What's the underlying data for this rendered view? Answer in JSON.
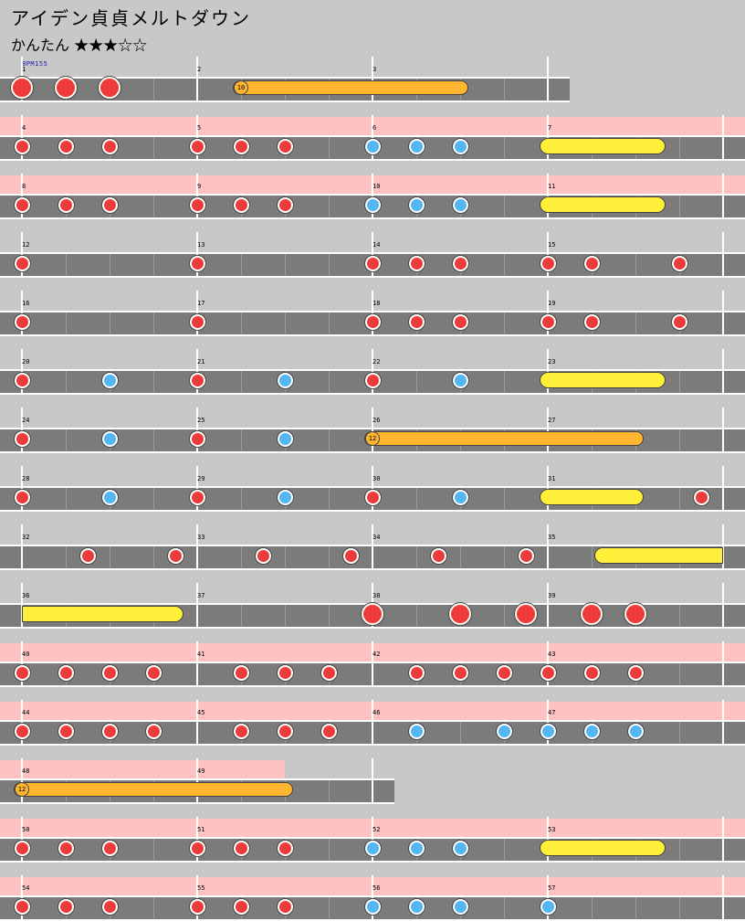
{
  "song": {
    "title": "アイデン貞貞メルトダウン",
    "difficulty_label": "かんたん",
    "stars": "★★★☆☆",
    "bpm_label": "BPM155"
  },
  "colors": {
    "background": "#c8c8c8",
    "lane": "#7b7b7b",
    "gogo_band": "#ffc2c2",
    "don": "#ee3c3c",
    "ka": "#52b6f2",
    "drumroll": "#ffee3a",
    "balloon": "#ffb530"
  },
  "rows": [
    {
      "measures": [
        1,
        2,
        3
      ],
      "gogo": false,
      "big": true,
      "notes": [
        {
          "m": 1,
          "b": 0,
          "t": "D"
        },
        {
          "m": 1,
          "b": 1,
          "t": "D"
        },
        {
          "m": 1,
          "b": 2,
          "t": "D"
        }
      ],
      "rolls": [
        {
          "type": "balloon",
          "start": [
            2,
            1
          ],
          "end": [
            3,
            2
          ],
          "count": "10"
        }
      ]
    },
    {
      "measures": [
        4,
        5,
        6,
        7
      ],
      "gogo": true,
      "notes": [
        {
          "m": 4,
          "b": 0,
          "t": "d"
        },
        {
          "m": 4,
          "b": 1,
          "t": "d"
        },
        {
          "m": 4,
          "b": 2,
          "t": "d"
        },
        {
          "m": 5,
          "b": 0,
          "t": "d"
        },
        {
          "m": 5,
          "b": 1,
          "t": "d"
        },
        {
          "m": 5,
          "b": 2,
          "t": "d"
        },
        {
          "m": 6,
          "b": 0,
          "t": "k"
        },
        {
          "m": 6,
          "b": 1,
          "t": "k"
        },
        {
          "m": 6,
          "b": 2,
          "t": "k"
        }
      ],
      "rolls": [
        {
          "type": "drumroll",
          "start": [
            7,
            0
          ],
          "end": [
            7,
            2.5
          ]
        }
      ]
    },
    {
      "measures": [
        8,
        9,
        10,
        11
      ],
      "gogo": true,
      "notes": [
        {
          "m": 8,
          "b": 0,
          "t": "d"
        },
        {
          "m": 8,
          "b": 1,
          "t": "d"
        },
        {
          "m": 8,
          "b": 2,
          "t": "d"
        },
        {
          "m": 9,
          "b": 0,
          "t": "d"
        },
        {
          "m": 9,
          "b": 1,
          "t": "d"
        },
        {
          "m": 9,
          "b": 2,
          "t": "d"
        },
        {
          "m": 10,
          "b": 0,
          "t": "k"
        },
        {
          "m": 10,
          "b": 1,
          "t": "k"
        },
        {
          "m": 10,
          "b": 2,
          "t": "k"
        }
      ],
      "rolls": [
        {
          "type": "drumroll",
          "start": [
            11,
            0
          ],
          "end": [
            11,
            2.5
          ]
        }
      ]
    },
    {
      "measures": [
        12,
        13,
        14,
        15
      ],
      "gogo": false,
      "notes": [
        {
          "m": 12,
          "b": 0,
          "t": "d"
        },
        {
          "m": 13,
          "b": 0,
          "t": "d"
        },
        {
          "m": 14,
          "b": 0,
          "t": "d"
        },
        {
          "m": 14,
          "b": 1,
          "t": "d"
        },
        {
          "m": 14,
          "b": 2,
          "t": "d"
        },
        {
          "m": 15,
          "b": 0,
          "t": "d"
        },
        {
          "m": 15,
          "b": 1,
          "t": "d"
        },
        {
          "m": 15,
          "b": 3,
          "t": "d"
        }
      ],
      "rolls": []
    },
    {
      "measures": [
        16,
        17,
        18,
        19
      ],
      "gogo": false,
      "notes": [
        {
          "m": 16,
          "b": 0,
          "t": "d"
        },
        {
          "m": 17,
          "b": 0,
          "t": "d"
        },
        {
          "m": 18,
          "b": 0,
          "t": "d"
        },
        {
          "m": 18,
          "b": 1,
          "t": "d"
        },
        {
          "m": 18,
          "b": 2,
          "t": "d"
        },
        {
          "m": 19,
          "b": 0,
          "t": "d"
        },
        {
          "m": 19,
          "b": 1,
          "t": "d"
        },
        {
          "m": 19,
          "b": 3,
          "t": "d"
        }
      ],
      "rolls": []
    },
    {
      "measures": [
        20,
        21,
        22,
        23
      ],
      "gogo": false,
      "notes": [
        {
          "m": 20,
          "b": 0,
          "t": "d"
        },
        {
          "m": 20,
          "b": 2,
          "t": "k"
        },
        {
          "m": 21,
          "b": 0,
          "t": "d"
        },
        {
          "m": 21,
          "b": 2,
          "t": "k"
        },
        {
          "m": 22,
          "b": 0,
          "t": "d"
        },
        {
          "m": 22,
          "b": 2,
          "t": "k"
        }
      ],
      "rolls": [
        {
          "type": "drumroll",
          "start": [
            23,
            0
          ],
          "end": [
            23,
            2.5
          ]
        }
      ]
    },
    {
      "measures": [
        24,
        25,
        26,
        27
      ],
      "gogo": false,
      "notes": [
        {
          "m": 24,
          "b": 0,
          "t": "d"
        },
        {
          "m": 24,
          "b": 2,
          "t": "k"
        },
        {
          "m": 25,
          "b": 0,
          "t": "d"
        },
        {
          "m": 25,
          "b": 2,
          "t": "k"
        }
      ],
      "rolls": [
        {
          "type": "balloon",
          "start": [
            26,
            0
          ],
          "end": [
            27,
            2
          ],
          "count": "12"
        }
      ]
    },
    {
      "measures": [
        28,
        29,
        30,
        31
      ],
      "gogo": false,
      "notes": [
        {
          "m": 28,
          "b": 0,
          "t": "d"
        },
        {
          "m": 28,
          "b": 2,
          "t": "k"
        },
        {
          "m": 29,
          "b": 0,
          "t": "d"
        },
        {
          "m": 29,
          "b": 2,
          "t": "k"
        },
        {
          "m": 30,
          "b": 0,
          "t": "d"
        },
        {
          "m": 30,
          "b": 2,
          "t": "k"
        },
        {
          "m": 31,
          "b": 3.5,
          "t": "d"
        }
      ],
      "rolls": [
        {
          "type": "drumroll",
          "start": [
            31,
            0
          ],
          "end": [
            31,
            2
          ]
        }
      ]
    },
    {
      "measures": [
        32,
        33,
        34,
        35
      ],
      "gogo": false,
      "notes": [
        {
          "m": 32,
          "b": 1.5,
          "t": "d"
        },
        {
          "m": 32,
          "b": 3.5,
          "t": "d"
        },
        {
          "m": 33,
          "b": 1.5,
          "t": "d"
        },
        {
          "m": 33,
          "b": 3.5,
          "t": "d"
        },
        {
          "m": 34,
          "b": 1.5,
          "t": "d"
        },
        {
          "m": 34,
          "b": 3.5,
          "t": "d"
        }
      ],
      "rolls": [
        {
          "type": "drumroll",
          "start": [
            35,
            1.25
          ],
          "end": [
            35,
            4
          ],
          "open_end": true
        }
      ]
    },
    {
      "measures": [
        36,
        37,
        38,
        39
      ],
      "gogo": false,
      "big": true,
      "notes": [
        {
          "m": 38,
          "b": 0,
          "t": "D"
        },
        {
          "m": 38,
          "b": 2,
          "t": "D"
        },
        {
          "m": 38,
          "b": 3.5,
          "t": "D"
        },
        {
          "m": 39,
          "b": 1,
          "t": "D"
        },
        {
          "m": 39,
          "b": 2,
          "t": "D"
        }
      ],
      "rolls": [
        {
          "type": "drumroll",
          "start": [
            36,
            0
          ],
          "end": [
            36,
            3.5
          ],
          "open_start": true
        }
      ]
    },
    {
      "measures": [
        40,
        41,
        42,
        43
      ],
      "gogo": true,
      "notes": [
        {
          "m": 40,
          "b": 0,
          "t": "d"
        },
        {
          "m": 40,
          "b": 1,
          "t": "d"
        },
        {
          "m": 40,
          "b": 2,
          "t": "d"
        },
        {
          "m": 40,
          "b": 3,
          "t": "d"
        },
        {
          "m": 41,
          "b": 1,
          "t": "d"
        },
        {
          "m": 41,
          "b": 2,
          "t": "d"
        },
        {
          "m": 41,
          "b": 3,
          "t": "d"
        },
        {
          "m": 42,
          "b": 1,
          "t": "d"
        },
        {
          "m": 42,
          "b": 2,
          "t": "d"
        },
        {
          "m": 42,
          "b": 3,
          "t": "d"
        },
        {
          "m": 43,
          "b": 0,
          "t": "d"
        },
        {
          "m": 43,
          "b": 1,
          "t": "d"
        },
        {
          "m": 43,
          "b": 2,
          "t": "d"
        }
      ],
      "rolls": []
    },
    {
      "measures": [
        44,
        45,
        46,
        47
      ],
      "gogo": true,
      "notes": [
        {
          "m": 44,
          "b": 0,
          "t": "d"
        },
        {
          "m": 44,
          "b": 1,
          "t": "d"
        },
        {
          "m": 44,
          "b": 2,
          "t": "d"
        },
        {
          "m": 44,
          "b": 3,
          "t": "d"
        },
        {
          "m": 45,
          "b": 1,
          "t": "d"
        },
        {
          "m": 45,
          "b": 2,
          "t": "d"
        },
        {
          "m": 45,
          "b": 3,
          "t": "d"
        },
        {
          "m": 46,
          "b": 1,
          "t": "k"
        },
        {
          "m": 46,
          "b": 3,
          "t": "k"
        },
        {
          "m": 47,
          "b": 0,
          "t": "k"
        },
        {
          "m": 47,
          "b": 1,
          "t": "k"
        },
        {
          "m": 47,
          "b": 2,
          "t": "k"
        }
      ],
      "rolls": []
    },
    {
      "measures": [
        48,
        49
      ],
      "gogo": true,
      "partial": true,
      "notes": [],
      "rolls": [
        {
          "type": "balloon",
          "start": [
            48,
            0
          ],
          "end": [
            49,
            2
          ],
          "count": "12"
        }
      ]
    },
    {
      "measures": [
        50,
        51,
        52,
        53
      ],
      "gogo": true,
      "notes": [
        {
          "m": 50,
          "b": 0,
          "t": "d"
        },
        {
          "m": 50,
          "b": 1,
          "t": "d"
        },
        {
          "m": 50,
          "b": 2,
          "t": "d"
        },
        {
          "m": 51,
          "b": 0,
          "t": "d"
        },
        {
          "m": 51,
          "b": 1,
          "t": "d"
        },
        {
          "m": 51,
          "b": 2,
          "t": "d"
        },
        {
          "m": 52,
          "b": 0,
          "t": "k"
        },
        {
          "m": 52,
          "b": 1,
          "t": "k"
        },
        {
          "m": 52,
          "b": 2,
          "t": "k"
        }
      ],
      "rolls": [
        {
          "type": "drumroll",
          "start": [
            53,
            0
          ],
          "end": [
            53,
            2.5
          ]
        }
      ]
    },
    {
      "measures": [
        54,
        55,
        56,
        57
      ],
      "gogo": true,
      "notes": [
        {
          "m": 54,
          "b": 0,
          "t": "d"
        },
        {
          "m": 54,
          "b": 1,
          "t": "d"
        },
        {
          "m": 54,
          "b": 2,
          "t": "d"
        },
        {
          "m": 55,
          "b": 0,
          "t": "d"
        },
        {
          "m": 55,
          "b": 1,
          "t": "d"
        },
        {
          "m": 55,
          "b": 2,
          "t": "d"
        },
        {
          "m": 56,
          "b": 0,
          "t": "k"
        },
        {
          "m": 56,
          "b": 1,
          "t": "k"
        },
        {
          "m": 56,
          "b": 2,
          "t": "k"
        },
        {
          "m": 57,
          "b": 0,
          "t": "k"
        }
      ],
      "rolls": []
    }
  ]
}
